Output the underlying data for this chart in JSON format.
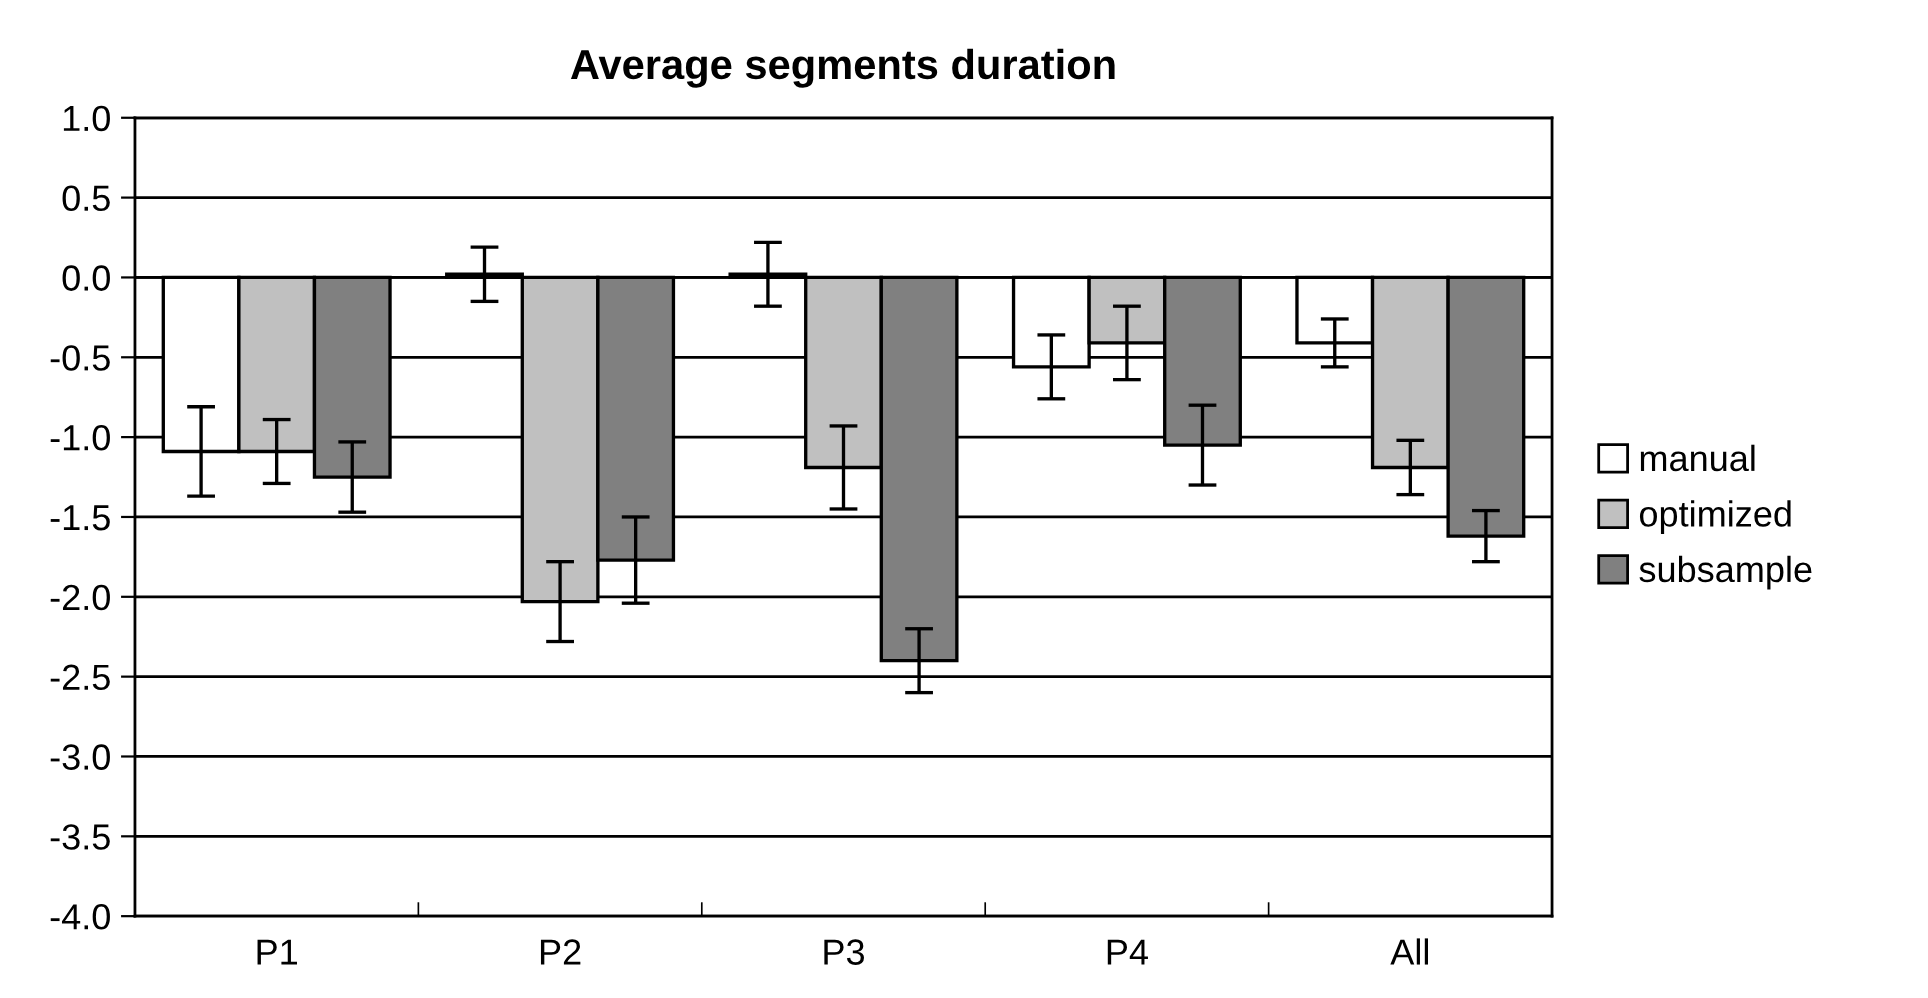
{
  "chart_data": {
    "type": "bar",
    "title": "Average segments duration",
    "categories": [
      "P1",
      "P2",
      "P3",
      "P4",
      "All"
    ],
    "series": [
      {
        "name": "manual",
        "color": "#ffffff",
        "values": [
          -1.09,
          0.02,
          0.02,
          -0.56,
          -0.41
        ],
        "errors": [
          0.28,
          0.17,
          0.2,
          0.2,
          0.15
        ]
      },
      {
        "name": "optimized",
        "color": "#c0c0c0",
        "values": [
          -1.09,
          -2.03,
          -1.19,
          -0.41,
          -1.19
        ],
        "errors": [
          0.2,
          0.25,
          0.26,
          0.23,
          0.17
        ]
      },
      {
        "name": "subsample",
        "color": "#808080",
        "values": [
          -1.25,
          -1.77,
          -2.4,
          -1.05,
          -1.62
        ],
        "errors": [
          0.22,
          0.27,
          0.2,
          0.25,
          0.16
        ]
      }
    ],
    "ylim": [
      -4.0,
      1.0
    ],
    "yticks": [
      {
        "value": 1.0,
        "label": "1.0"
      },
      {
        "value": 0.5,
        "label": "0.5"
      },
      {
        "value": 0.0,
        "label": "0.0"
      },
      {
        "value": -0.5,
        "label": "-0.5"
      },
      {
        "value": -1.0,
        "label": "-1.0"
      },
      {
        "value": -1.5,
        "label": "-1.5"
      },
      {
        "value": -2.0,
        "label": "-2.0"
      },
      {
        "value": -2.5,
        "label": "-2.5"
      },
      {
        "value": -3.0,
        "label": "-3.0"
      },
      {
        "value": -3.5,
        "label": "-3.5"
      },
      {
        "value": -4.0,
        "label": "-4.0"
      }
    ],
    "grid": "y",
    "legend": "right"
  }
}
